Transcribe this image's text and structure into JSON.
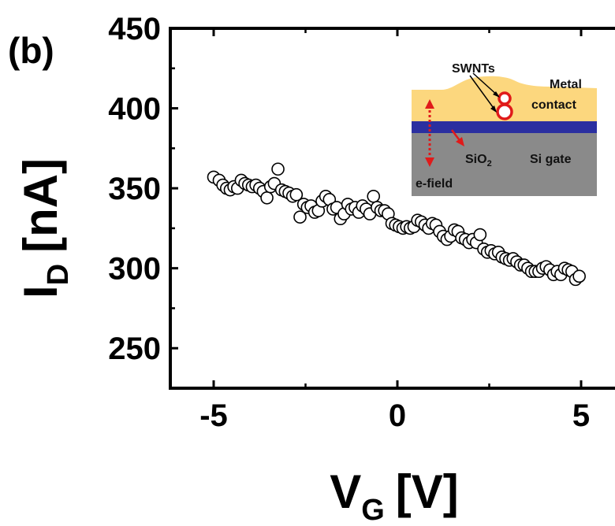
{
  "panel_label": "(b)",
  "chart_data": {
    "type": "scatter",
    "xlabel": "V",
    "xlabel_sub": "G",
    "xlabel_unit": "[V]",
    "ylabel": "I",
    "ylabel_sub": "D",
    "ylabel_unit": "[nA]",
    "xlim": [
      -6,
      6
    ],
    "ylim": [
      225,
      450
    ],
    "x_ticks": [
      -5,
      0,
      5
    ],
    "y_ticks": [
      250,
      300,
      350,
      400,
      450
    ],
    "x_tick_labels": [
      "-5",
      "0",
      "5"
    ],
    "y_tick_labels": [
      "250",
      "300",
      "350",
      "400",
      "450"
    ],
    "marker": "open-circle",
    "series": [
      {
        "points": [
          [
            -5.0,
            357
          ],
          [
            -4.85,
            355
          ],
          [
            -4.75,
            352
          ],
          [
            -4.65,
            350
          ],
          [
            -4.55,
            349
          ],
          [
            -4.45,
            351
          ],
          [
            -4.35,
            350
          ],
          [
            -4.25,
            355
          ],
          [
            -4.15,
            353
          ],
          [
            -4.05,
            352
          ],
          [
            -3.95,
            351
          ],
          [
            -3.85,
            352
          ],
          [
            -3.75,
            350
          ],
          [
            -3.65,
            348
          ],
          [
            -3.55,
            344
          ],
          [
            -3.45,
            351
          ],
          [
            -3.35,
            353
          ],
          [
            -3.25,
            362
          ],
          [
            -3.15,
            349
          ],
          [
            -3.05,
            348
          ],
          [
            -2.95,
            347
          ],
          [
            -2.85,
            345
          ],
          [
            -2.75,
            346
          ],
          [
            -2.65,
            332
          ],
          [
            -2.55,
            340
          ],
          [
            -2.45,
            338
          ],
          [
            -2.35,
            339
          ],
          [
            -2.25,
            335
          ],
          [
            -2.15,
            336
          ],
          [
            -2.05,
            342
          ],
          [
            -1.95,
            345
          ],
          [
            -1.85,
            343
          ],
          [
            -1.75,
            337
          ],
          [
            -1.65,
            338
          ],
          [
            -1.55,
            331
          ],
          [
            -1.45,
            334
          ],
          [
            -1.35,
            340
          ],
          [
            -1.25,
            337
          ],
          [
            -1.15,
            338
          ],
          [
            -1.05,
            335
          ],
          [
            -0.95,
            339
          ],
          [
            -0.85,
            337
          ],
          [
            -0.75,
            334
          ],
          [
            -0.65,
            345
          ],
          [
            -0.55,
            338
          ],
          [
            -0.45,
            336
          ],
          [
            -0.35,
            336
          ],
          [
            -0.25,
            334
          ],
          [
            -0.15,
            328
          ],
          [
            -0.05,
            327
          ],
          [
            0.05,
            326
          ],
          [
            0.15,
            325
          ],
          [
            0.25,
            326
          ],
          [
            0.35,
            325
          ],
          [
            0.45,
            326
          ],
          [
            0.55,
            330
          ],
          [
            0.65,
            329
          ],
          [
            0.75,
            327
          ],
          [
            0.85,
            325
          ],
          [
            0.95,
            328
          ],
          [
            1.05,
            327
          ],
          [
            1.15,
            323
          ],
          [
            1.25,
            320
          ],
          [
            1.35,
            318
          ],
          [
            1.45,
            320
          ],
          [
            1.55,
            324
          ],
          [
            1.65,
            323
          ],
          [
            1.75,
            319
          ],
          [
            1.85,
            318
          ],
          [
            1.95,
            316
          ],
          [
            2.05,
            318
          ],
          [
            2.15,
            316
          ],
          [
            2.25,
            321
          ],
          [
            2.35,
            312
          ],
          [
            2.45,
            310
          ],
          [
            2.55,
            311
          ],
          [
            2.65,
            309
          ],
          [
            2.75,
            310
          ],
          [
            2.85,
            307
          ],
          [
            2.95,
            306
          ],
          [
            3.05,
            305
          ],
          [
            3.15,
            306
          ],
          [
            3.25,
            304
          ],
          [
            3.35,
            302
          ],
          [
            3.45,
            302
          ],
          [
            3.55,
            300
          ],
          [
            3.65,
            298
          ],
          [
            3.75,
            298
          ],
          [
            3.85,
            298
          ],
          [
            3.95,
            300
          ],
          [
            4.05,
            301
          ],
          [
            4.15,
            299
          ],
          [
            4.25,
            296
          ],
          [
            4.35,
            298
          ],
          [
            4.45,
            296
          ],
          [
            4.55,
            300
          ],
          [
            4.65,
            299
          ],
          [
            4.75,
            298
          ],
          [
            4.85,
            293
          ],
          [
            4.95,
            295
          ]
        ]
      }
    ]
  },
  "inset": {
    "swnts_label": "SWNTs",
    "metal_label": "Metal",
    "contact_label": "contact",
    "sio2_label": "SiO",
    "sio2_sub": "2",
    "si_gate_label": "Si gate",
    "efield_label": "e-field",
    "colors": {
      "metal": "#FCD77E",
      "oxide": "#2B2FA0",
      "silicon": "#8A8A8A",
      "arrow": "#E01A1A"
    }
  }
}
